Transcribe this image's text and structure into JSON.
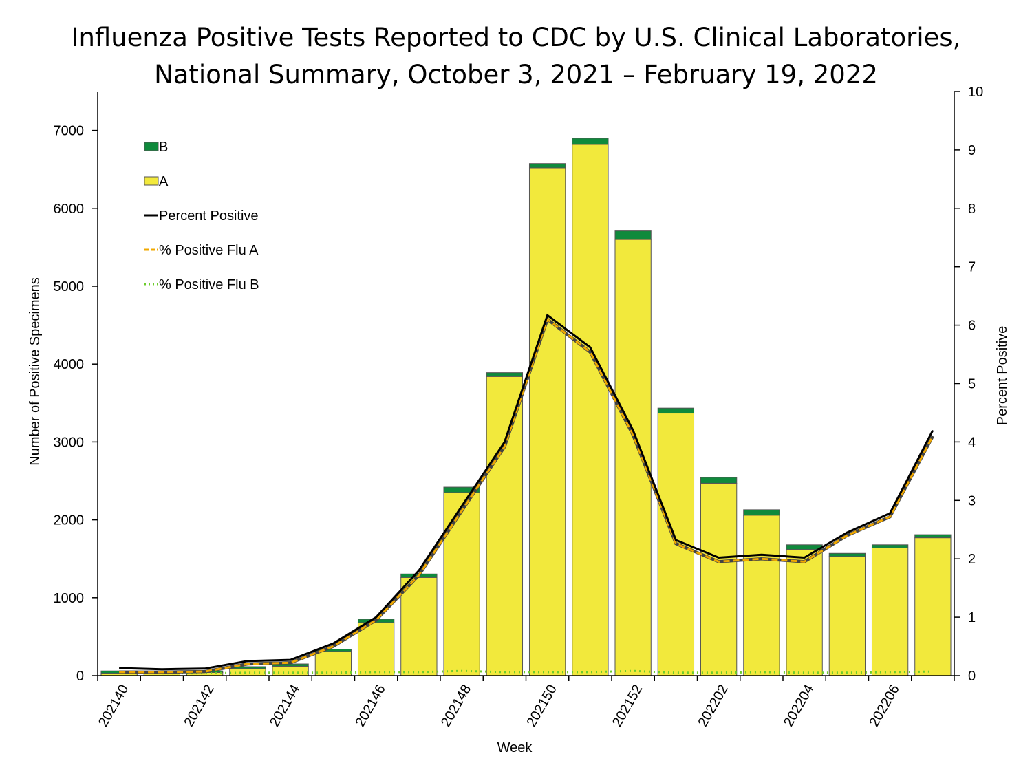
{
  "chart_data": {
    "type": "bar",
    "title_line1": "Influenza Positive Tests Reported to CDC by U.S. Clinical Laboratories,",
    "title_line2": "National Summary, October 3, 2021 – February 19, 2022",
    "xlabel": "Week",
    "ylabel_left": "Number of Positive Specimens",
    "ylabel_right": "Percent Positive",
    "ylim_left": [
      0,
      7500
    ],
    "ylim_right": [
      0,
      10
    ],
    "left_ticks": [
      0,
      1000,
      2000,
      3000,
      4000,
      5000,
      6000,
      7000
    ],
    "right_ticks": [
      0,
      1,
      2,
      3,
      4,
      5,
      6,
      7,
      8,
      9,
      10
    ],
    "x_tick_labels": [
      "202140",
      "202142",
      "202144",
      "202146",
      "202148",
      "202150",
      "202152",
      "202202",
      "202204",
      "202206"
    ],
    "categories": [
      "202140",
      "202141",
      "202142",
      "202143",
      "202144",
      "202145",
      "202146",
      "202147",
      "202148",
      "202149",
      "202150",
      "202151",
      "202152",
      "202201",
      "202202",
      "202203",
      "202204",
      "202205",
      "202206",
      "202207"
    ],
    "series": [
      {
        "name": "A",
        "kind": "bar",
        "color": "#f2e93c",
        "values": [
          30,
          30,
          40,
          90,
          120,
          310,
          680,
          1260,
          2350,
          3840,
          6520,
          6820,
          5600,
          3370,
          2470,
          2060,
          1620,
          1530,
          1640,
          1770
        ]
      },
      {
        "name": "B",
        "kind": "bar",
        "color": "#0f8a3c",
        "values": [
          30,
          10,
          20,
          25,
          30,
          30,
          45,
          45,
          70,
          50,
          55,
          80,
          110,
          65,
          75,
          70,
          60,
          40,
          40,
          40
        ]
      },
      {
        "name": "Percent Positive",
        "kind": "line",
        "color": "#000000",
        "dash": "solid",
        "values": [
          0.13,
          0.11,
          0.12,
          0.25,
          0.27,
          0.55,
          1.0,
          1.8,
          2.9,
          4.0,
          6.17,
          5.62,
          4.2,
          2.32,
          2.02,
          2.07,
          2.02,
          2.45,
          2.78,
          4.2
        ]
      },
      {
        "name": "% Positive Flu A",
        "kind": "line",
        "color": "#f0a800",
        "dash": "dashed",
        "values": [
          0.06,
          0.06,
          0.07,
          0.2,
          0.22,
          0.5,
          0.95,
          1.72,
          2.82,
          3.92,
          6.1,
          5.54,
          4.12,
          2.26,
          1.95,
          2.0,
          1.95,
          2.4,
          2.72,
          4.1
        ]
      },
      {
        "name": "% Positive Flu B",
        "kind": "line",
        "color": "#6ccc2c",
        "dash": "dotted",
        "values": [
          0.06,
          0.04,
          0.04,
          0.05,
          0.05,
          0.05,
          0.06,
          0.06,
          0.08,
          0.06,
          0.06,
          0.06,
          0.08,
          0.05,
          0.05,
          0.06,
          0.05,
          0.05,
          0.06,
          0.07
        ]
      }
    ],
    "legend": [
      "B",
      "A",
      "Percent Positive",
      "% Positive Flu A",
      "% Positive Flu B"
    ],
    "legend_position": "top-left",
    "grid": false
  }
}
